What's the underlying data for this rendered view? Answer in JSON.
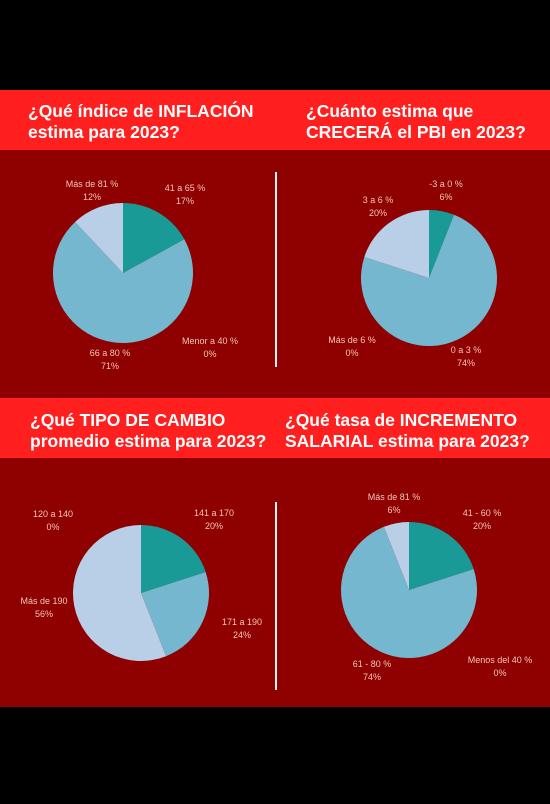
{
  "colors": {
    "background": "#000000",
    "panel": "#8f0000",
    "band": "#ff1f1f",
    "teal": "#1a9a96",
    "blue": "#74b7cf",
    "light": "#b9cfe8",
    "label": "#f3c6b8"
  },
  "chart_data": [
    {
      "type": "pie",
      "title": "¿Qué índice de INFLACIÓN\nestima para 2023?",
      "slices": [
        {
          "label": "41 a 65 %",
          "value": 17,
          "value_text": "17%",
          "color": "#1a9a96"
        },
        {
          "label": "Menor a 40 %",
          "value": 0,
          "value_text": "0%",
          "color": "#c9e3ec"
        },
        {
          "label": "66 a 80 %",
          "value": 71,
          "value_text": "71%",
          "color": "#74b7cf"
        },
        {
          "label": "Más de 81 %",
          "value": 12,
          "value_text": "12%",
          "color": "#b9cfe8"
        }
      ]
    },
    {
      "type": "pie",
      "title": "¿Cuánto estima que\nCRECERÁ el PBI en 2023?",
      "slices": [
        {
          "label": "-3 a 0 %",
          "value": 6,
          "value_text": "6%",
          "color": "#1a9a96"
        },
        {
          "label": "0 a 3 %",
          "value": 74,
          "value_text": "74%",
          "color": "#74b7cf"
        },
        {
          "label": "Más de 6 %",
          "value": 0,
          "value_text": "0%",
          "color": "#c9e3ec"
        },
        {
          "label": "3 a 6 %",
          "value": 20,
          "value_text": "20%",
          "color": "#b9cfe8"
        }
      ]
    },
    {
      "type": "pie",
      "title": "¿Qué TIPO DE CAMBIO\npromedio estima para 2023?",
      "slices": [
        {
          "label": "141 a 170",
          "value": 20,
          "value_text": "20%",
          "color": "#1a9a96"
        },
        {
          "label": "171 a 190",
          "value": 24,
          "value_text": "24%",
          "color": "#74b7cf"
        },
        {
          "label": "Más de 190",
          "value": 56,
          "value_text": "56%",
          "color": "#b9cfe8"
        },
        {
          "label": "120 a 140",
          "value": 0,
          "value_text": "0%",
          "color": "#c9e3ec"
        }
      ]
    },
    {
      "type": "pie",
      "title": "¿Qué tasa de INCREMENTO\nSALARIAL estima para 2023?",
      "slices": [
        {
          "label": "41 - 60 %",
          "value": 20,
          "value_text": "20%",
          "color": "#1a9a96"
        },
        {
          "label": "Menos del 40 %",
          "value": 0,
          "value_text": "0%",
          "color": "#c9e3ec"
        },
        {
          "label": "61 - 80 %",
          "value": 74,
          "value_text": "74%",
          "color": "#74b7cf"
        },
        {
          "label": "Más de 81 %",
          "value": 6,
          "value_text": "6%",
          "color": "#b9cfe8"
        }
      ]
    }
  ]
}
